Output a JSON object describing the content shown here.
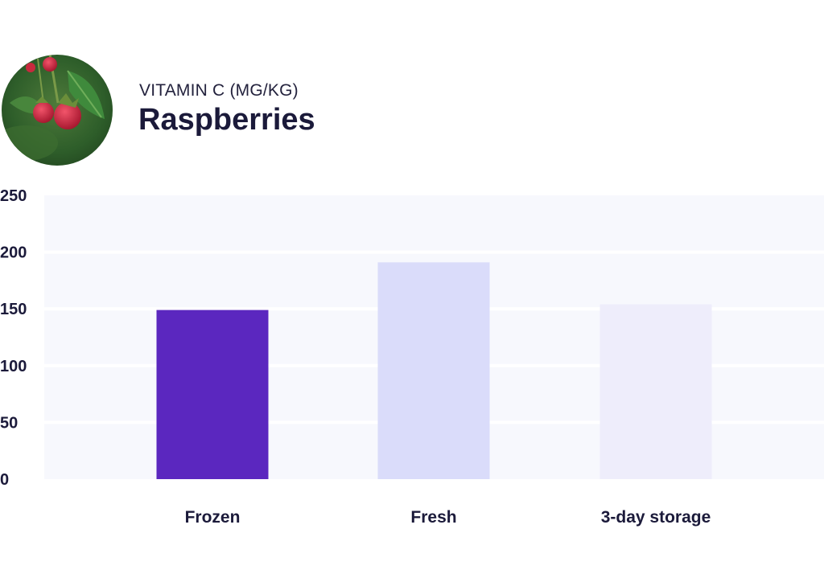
{
  "header": {
    "subtitle": "VITAMIN C (MG/KG)",
    "title": "Raspberries",
    "image_icon": "raspberry-photo"
  },
  "chart_data": {
    "type": "bar",
    "categories": [
      "Frozen",
      "Fresh",
      "3-day storage"
    ],
    "values": [
      149,
      191,
      154
    ],
    "ylim": [
      0,
      250
    ],
    "yticks": [
      "0",
      "50",
      "100",
      "150",
      "200",
      "250"
    ],
    "grid": true,
    "bar_colors": [
      "#5b27bf",
      "#dadcfa",
      "#eeedfb"
    ],
    "plot_background": "#f7f8fd"
  }
}
